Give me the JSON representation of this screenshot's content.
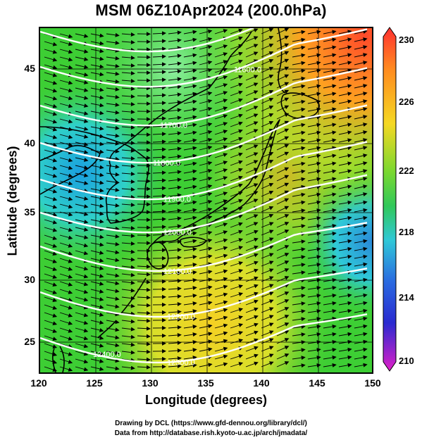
{
  "title": "MSM 06Z10Apr2024 (200.0hPa)",
  "xlabel": "Longitude (degrees)",
  "ylabel": "Latitude  (degrees)",
  "x_ticks": [
    "120",
    "125",
    "130",
    "135",
    "140",
    "145",
    "150"
  ],
  "y_ticks": [
    "45",
    "40",
    "35",
    "30",
    "25"
  ],
  "colorbar": {
    "labels": [
      "230",
      "226",
      "222",
      "218",
      "214",
      "210"
    ],
    "min": 210,
    "max": 230
  },
  "contour_labels": [
    "11600.0",
    "11700.0",
    "11800.0",
    "11900.0",
    "12000.0",
    "12100.0",
    "12200.0",
    "12300.0",
    "12400.0"
  ],
  "footer": {
    "line1": "Drawing by DCL (https://www.gfd-dennou.org/library/dcl/)",
    "line2": "Data from http://database.rish.kyoto-u.ac.jp/arch/jmadata/"
  },
  "colors": {
    "warm": "#ff6a2a",
    "orange": "#ffa020",
    "yellow": "#f2d823",
    "green": "#3dce34",
    "cyan": "#2fc9d8",
    "blue": "#2b3fd8",
    "magenta": "#e020c8",
    "contour": "#ffffff",
    "vector": "#000000"
  }
}
